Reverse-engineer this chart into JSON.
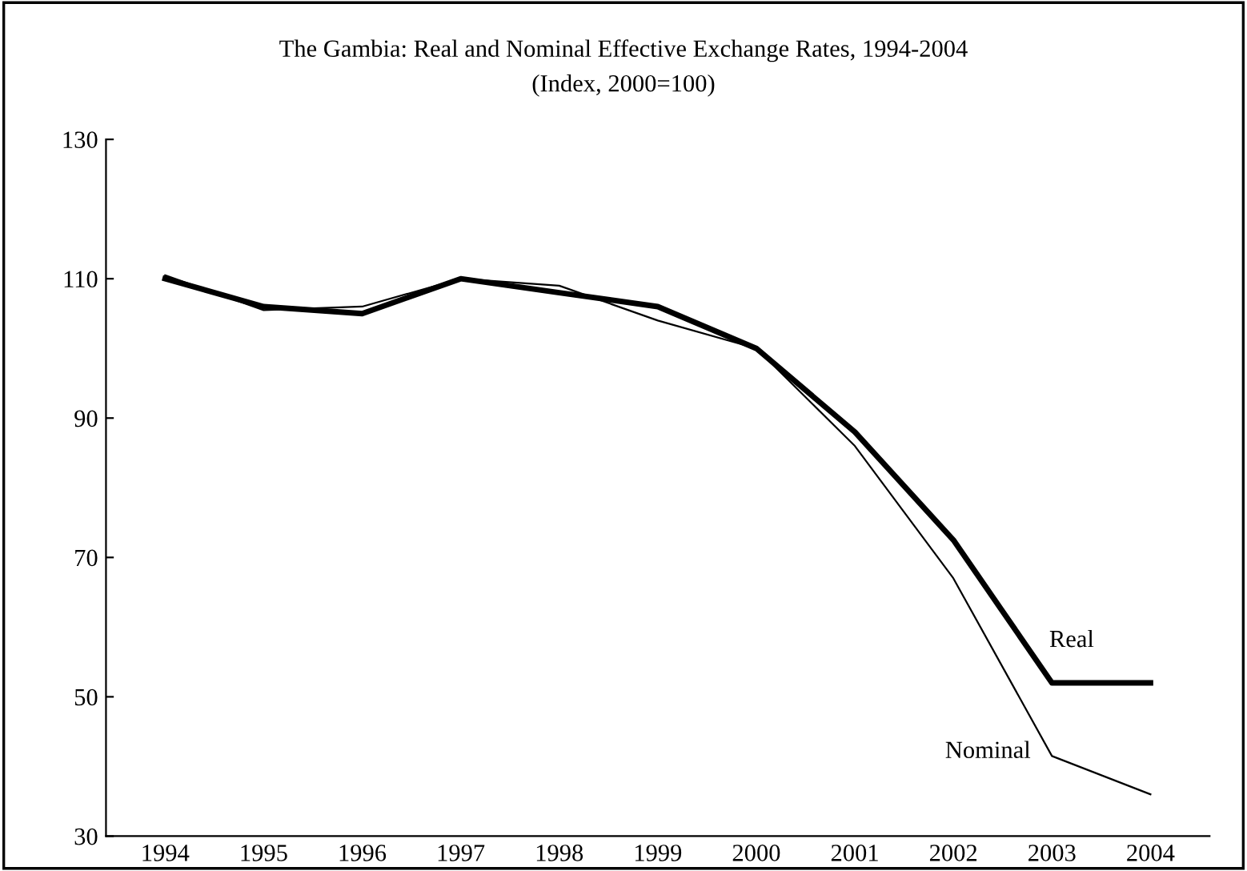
{
  "chart_data": {
    "type": "line",
    "title": "The Gambia: Real and Nominal Effective Exchange Rates, 1994-2004",
    "subtitle": "(Index, 2000=100)",
    "categories": [
      "1994",
      "1995",
      "1996",
      "1997",
      "1998",
      "1999",
      "2000",
      "2001",
      "2002",
      "2003",
      "2004"
    ],
    "series": [
      {
        "name": "Real",
        "color": "#000000",
        "values": [
          110,
          106,
          105,
          110,
          108,
          106,
          100,
          88,
          72.5,
          52,
          52
        ]
      },
      {
        "name": "Nominal",
        "color": "#000000",
        "values": [
          110.5,
          105.5,
          106,
          110,
          109,
          104,
          100,
          86,
          67,
          41.5,
          36
        ]
      }
    ],
    "ylim": [
      30,
      130
    ],
    "yticks": [
      30,
      50,
      70,
      90,
      110,
      130
    ],
    "grid": false,
    "legend": false,
    "marker": "none",
    "line_style": "solid"
  }
}
